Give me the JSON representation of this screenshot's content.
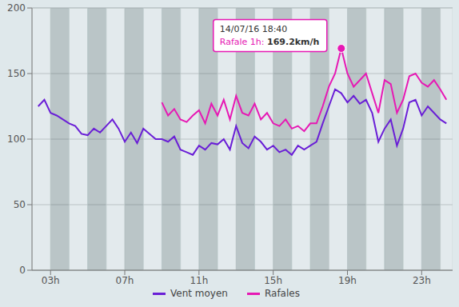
{
  "chart_data": {
    "type": "line",
    "x": [
      140,
      160,
      180,
      200,
      220,
      240,
      260,
      280,
      300,
      320,
      340,
      360,
      380,
      400,
      420,
      440,
      460,
      480,
      500,
      520,
      540,
      560,
      580,
      600,
      620,
      640,
      660,
      680,
      700,
      720,
      740,
      760,
      780,
      800,
      820,
      840,
      860,
      880,
      900,
      920,
      940,
      960,
      980,
      1000,
      1020,
      1040,
      1060,
      1080,
      1100,
      1120,
      1140,
      1160,
      1180,
      1200,
      1220,
      1240,
      1260,
      1280,
      1300,
      1320,
      1340,
      1360,
      1380,
      1400,
      1420,
      1440,
      1460
    ],
    "series": [
      {
        "name": "Vent moyen",
        "color": "#6a1fd6",
        "values": [
          125,
          130,
          120,
          118,
          115,
          112,
          110,
          104,
          103,
          108,
          105,
          110,
          115,
          108,
          98,
          105,
          97,
          108,
          104,
          100,
          100,
          98,
          102,
          92,
          90,
          88,
          95,
          92,
          97,
          96,
          100,
          92,
          110,
          97,
          93,
          102,
          98,
          92,
          95,
          90,
          92,
          88,
          95,
          92,
          95,
          98,
          112,
          125,
          138,
          135,
          128,
          133,
          127,
          130,
          120,
          98,
          108,
          115,
          95,
          108,
          128,
          130,
          118,
          125,
          120,
          115,
          112
        ]
      },
      {
        "name": "Rafales",
        "color": "#e619b4",
        "values": [
          null,
          null,
          null,
          null,
          null,
          null,
          null,
          null,
          null,
          null,
          null,
          null,
          null,
          null,
          null,
          null,
          null,
          null,
          null,
          null,
          128,
          118,
          123,
          115,
          113,
          118,
          122,
          112,
          127,
          118,
          130,
          115,
          133,
          120,
          118,
          127,
          115,
          120,
          112,
          110,
          115,
          108,
          110,
          106,
          112,
          112,
          125,
          140,
          150,
          169.2,
          150,
          140,
          145,
          150,
          135,
          120,
          145,
          142,
          120,
          130,
          148,
          150,
          143,
          140,
          145,
          138,
          130
        ]
      }
    ],
    "xlim": [
      120,
      1480
    ],
    "xticks": [
      {
        "value": 180,
        "label": "03h"
      },
      {
        "value": 420,
        "label": "07h"
      },
      {
        "value": 660,
        "label": "11h"
      },
      {
        "value": 900,
        "label": "15h"
      },
      {
        "value": 1140,
        "label": "19h"
      },
      {
        "value": 1380,
        "label": "23h"
      }
    ],
    "ylim": [
      0,
      200
    ],
    "yticks": [
      0,
      50,
      100,
      150,
      200
    ],
    "grid": true,
    "legend": "bottom",
    "annotation": {
      "x": 1120,
      "y": 169.2,
      "date": "14/07/16 18:40",
      "label": "Rafale 1h:",
      "value": 169.2,
      "unit": "km/h"
    }
  }
}
